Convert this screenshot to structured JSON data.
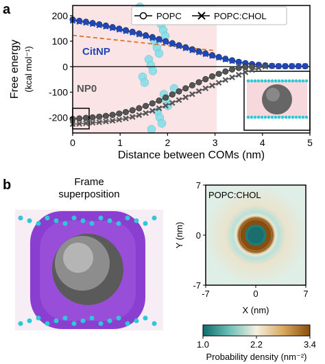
{
  "panels": {
    "a": "a",
    "b": "b"
  },
  "chart_data": [
    {
      "type": "line",
      "xlabel": "Distance between COMs (nm)",
      "ylabel_line1": "Free energy",
      "ylabel_line2": "(kcal mol⁻¹)",
      "xlim": [
        0,
        5
      ],
      "ylim": [
        -260,
        240
      ],
      "x_ticks": [
        "0",
        "1",
        "2",
        "3",
        "4",
        "5"
      ],
      "y_ticks": [
        "200",
        "100",
        "0",
        "-100",
        "-200"
      ],
      "legend": [
        "POPC",
        "POPC:CHOL"
      ],
      "annotations": {
        "citnp": "CitNP",
        "np0": "NP0"
      },
      "colors": {
        "citnp": "#1f47b8",
        "np0": "#555555",
        "fit": "#e07020",
        "membrane": "#f7d8dc",
        "water_beads": "#7fe0e8"
      },
      "series": [
        {
          "name": "POPC",
          "group": "CitNP",
          "marker": "circle",
          "x": [
            0,
            0.14,
            0.28,
            0.42,
            0.56,
            0.7,
            0.84,
            0.98,
            1.12,
            1.26,
            1.4,
            1.54,
            1.68,
            1.82,
            1.96,
            2.1,
            2.24,
            2.38,
            2.52,
            2.66,
            2.8,
            2.94,
            3.08,
            3.22,
            3.36,
            3.5,
            3.64,
            3.78,
            3.92,
            4.06,
            4.2,
            4.34,
            4.48,
            4.62,
            4.76,
            4.9
          ],
          "y": [
            185,
            180,
            176,
            171,
            166,
            161,
            155,
            149,
            143,
            137,
            130,
            123,
            116,
            108,
            100,
            92,
            84,
            76,
            68,
            60,
            52,
            45,
            38,
            31,
            25,
            19,
            14,
            10,
            7,
            5,
            3,
            2,
            2,
            2,
            2,
            2
          ]
        },
        {
          "name": "POPC:CHOL",
          "group": "CitNP",
          "marker": "cross",
          "x": [
            0,
            0.14,
            0.28,
            0.42,
            0.56,
            0.7,
            0.84,
            0.98,
            1.12,
            1.26,
            1.4,
            1.54,
            1.68,
            1.82,
            1.96,
            2.1,
            2.24,
            2.38,
            2.52,
            2.66,
            2.8,
            2.94,
            3.08,
            3.22,
            3.36,
            3.5,
            3.64,
            3.78,
            3.92,
            4.06,
            4.2,
            4.34,
            4.48,
            4.62,
            4.76,
            4.9
          ],
          "y": [
            180,
            176,
            172,
            167,
            162,
            157,
            151,
            145,
            139,
            133,
            126,
            119,
            112,
            104,
            96,
            88,
            80,
            72,
            64,
            56,
            49,
            42,
            35,
            28,
            22,
            17,
            12,
            8,
            6,
            4,
            3,
            2,
            2,
            2,
            2,
            2
          ]
        },
        {
          "name": "POPC",
          "group": "NP0",
          "marker": "circle",
          "x": [
            0,
            0.14,
            0.28,
            0.42,
            0.56,
            0.7,
            0.84,
            0.98,
            1.12,
            1.26,
            1.4,
            1.54,
            1.68,
            1.82,
            1.96,
            2.1,
            2.24,
            2.38,
            2.52,
            2.66,
            2.8,
            2.94,
            3.08,
            3.22,
            3.36,
            3.5,
            3.64,
            3.78
          ],
          "y": [
            -205,
            -203,
            -201,
            -199,
            -196,
            -193,
            -189,
            -184,
            -178,
            -171,
            -163,
            -154,
            -144,
            -133,
            -121,
            -109,
            -97,
            -85,
            -73,
            -61,
            -49,
            -38,
            -28,
            -19,
            -11,
            -5,
            -1,
            0
          ]
        },
        {
          "name": "POPC:CHOL",
          "group": "NP0",
          "marker": "cross",
          "x": [
            0,
            0.14,
            0.28,
            0.42,
            0.56,
            0.7,
            0.84,
            0.98,
            1.12,
            1.26,
            1.4,
            1.54,
            1.68,
            1.82,
            1.96,
            2.1,
            2.24,
            2.38,
            2.52,
            2.66,
            2.8,
            2.94,
            3.08,
            3.22,
            3.36,
            3.5,
            3.64,
            3.78,
            3.92,
            4.06
          ],
          "y": [
            -225,
            -224,
            -222,
            -220,
            -218,
            -215,
            -212,
            -208,
            -203,
            -197,
            -190,
            -182,
            -173,
            -163,
            -153,
            -142,
            -131,
            -120,
            -108,
            -96,
            -85,
            -74,
            -63,
            -52,
            -42,
            -32,
            -22,
            -13,
            -5,
            0
          ]
        }
      ],
      "fits": [
        {
          "group": "CitNP",
          "style": "dashed",
          "x": [
            0,
            1,
            2,
            3
          ],
          "y": [
            123,
            108,
            86,
            63
          ]
        }
      ]
    },
    {
      "type": "heatmap",
      "title": "POPC:CHOL",
      "xlabel": "X (nm)",
      "ylabel": "Y (nm)",
      "xlim": [
        -7,
        7
      ],
      "ylim": [
        -7,
        7
      ],
      "x_ticks": [
        "-7",
        "0",
        "7"
      ],
      "y_ticks": [
        "7",
        "0",
        "-7"
      ],
      "colorbar": {
        "label": "Probability density (nm⁻²)",
        "ticks": [
          "1.0",
          "2.2",
          "3.4"
        ],
        "min": 1.0,
        "max": 3.4,
        "colors": [
          "#0f6b6b",
          "#6fc0b8",
          "#f5f0e0",
          "#d9a860",
          "#8a4e0c"
        ]
      },
      "rings": [
        {
          "radius_nm": 1.7,
          "value": 3.4
        },
        {
          "radius_nm": 1.1,
          "value": 1.0
        }
      ]
    }
  ],
  "rendering": {
    "caption_line1": "Frame",
    "caption_line2": "superposition",
    "colors": {
      "shell": "#8a3fd0",
      "core": "#909090",
      "beads": "#2ec8d8"
    }
  }
}
